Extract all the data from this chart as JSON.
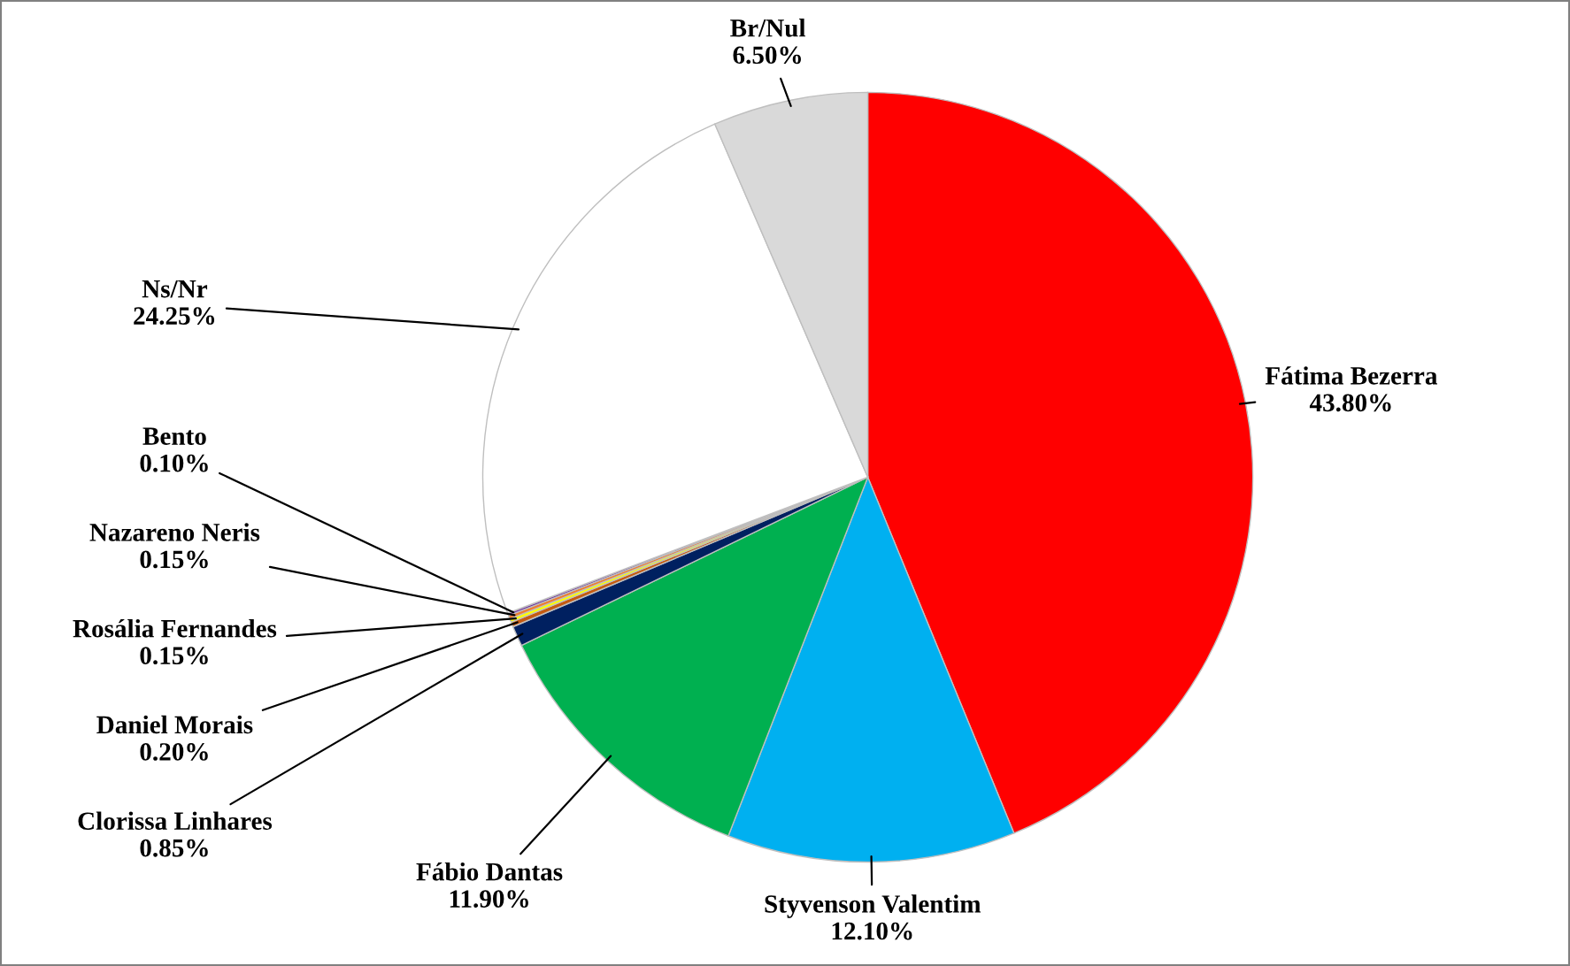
{
  "chart_data": {
    "type": "pie",
    "categories": [
      "Fátima Bezerra",
      "Styvenson Valentim",
      "Fábio Dantas",
      "Clorissa Linhares",
      "Daniel Morais",
      "Rosália Fernandes",
      "Nazareno Neris",
      "Bento",
      "Ns/Nr",
      "Br/Nul"
    ],
    "values": [
      43.8,
      12.1,
      11.9,
      0.85,
      0.2,
      0.15,
      0.15,
      0.1,
      24.25,
      6.5
    ],
    "value_labels": [
      "43.80%",
      "12.10%",
      "11.90%",
      "0.85%",
      "0.20%",
      "0.15%",
      "0.15%",
      "0.10%",
      "24.25%",
      "6.50%"
    ],
    "colors": [
      "#ff0000",
      "#00b0f0",
      "#00b050",
      "#002060",
      "#c55a11",
      "#ffff00",
      "#ed7d31",
      "#7030a0",
      "#ffffff",
      "#d9d9d9"
    ]
  }
}
